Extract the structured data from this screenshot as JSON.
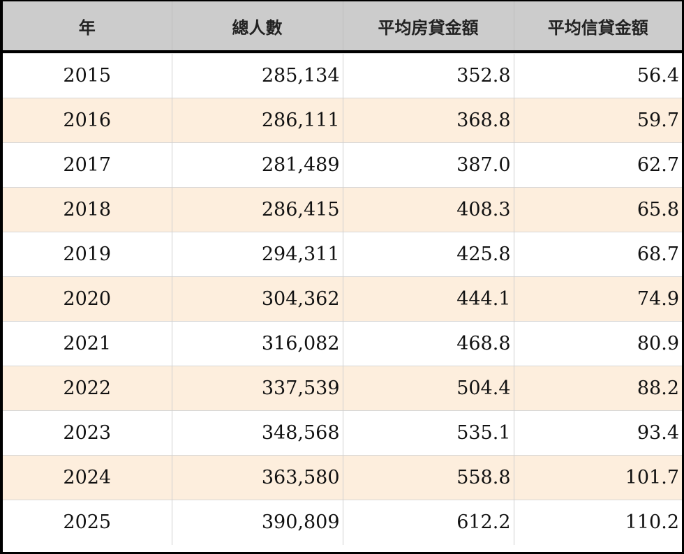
{
  "table": {
    "headers": [
      "年",
      "總人數",
      "平均房貸金額",
      "平均信貸金額"
    ],
    "rows": [
      [
        "2015",
        "285,134",
        "352.8",
        "56.4"
      ],
      [
        "2016",
        "286,111",
        "368.8",
        "59.7"
      ],
      [
        "2017",
        "281,489",
        "387.0",
        "62.7"
      ],
      [
        "2018",
        "286,415",
        "408.3",
        "65.8"
      ],
      [
        "2019",
        "294,311",
        "425.8",
        "68.7"
      ],
      [
        "2020",
        "304,362",
        "444.1",
        "74.9"
      ],
      [
        "2021",
        "316,082",
        "468.8",
        "80.9"
      ],
      [
        "2022",
        "337,539",
        "504.4",
        "88.2"
      ],
      [
        "2023",
        "348,568",
        "535.1",
        "93.4"
      ],
      [
        "2024",
        "363,580",
        "558.8",
        "101.7"
      ],
      [
        "2025",
        "390,809",
        "612.2",
        "110.2"
      ]
    ]
  },
  "colors": {
    "header_bg": "#cccccc",
    "alt_row_bg": "#fdeedd",
    "row_bg": "#ffffff",
    "border": "#000000"
  }
}
